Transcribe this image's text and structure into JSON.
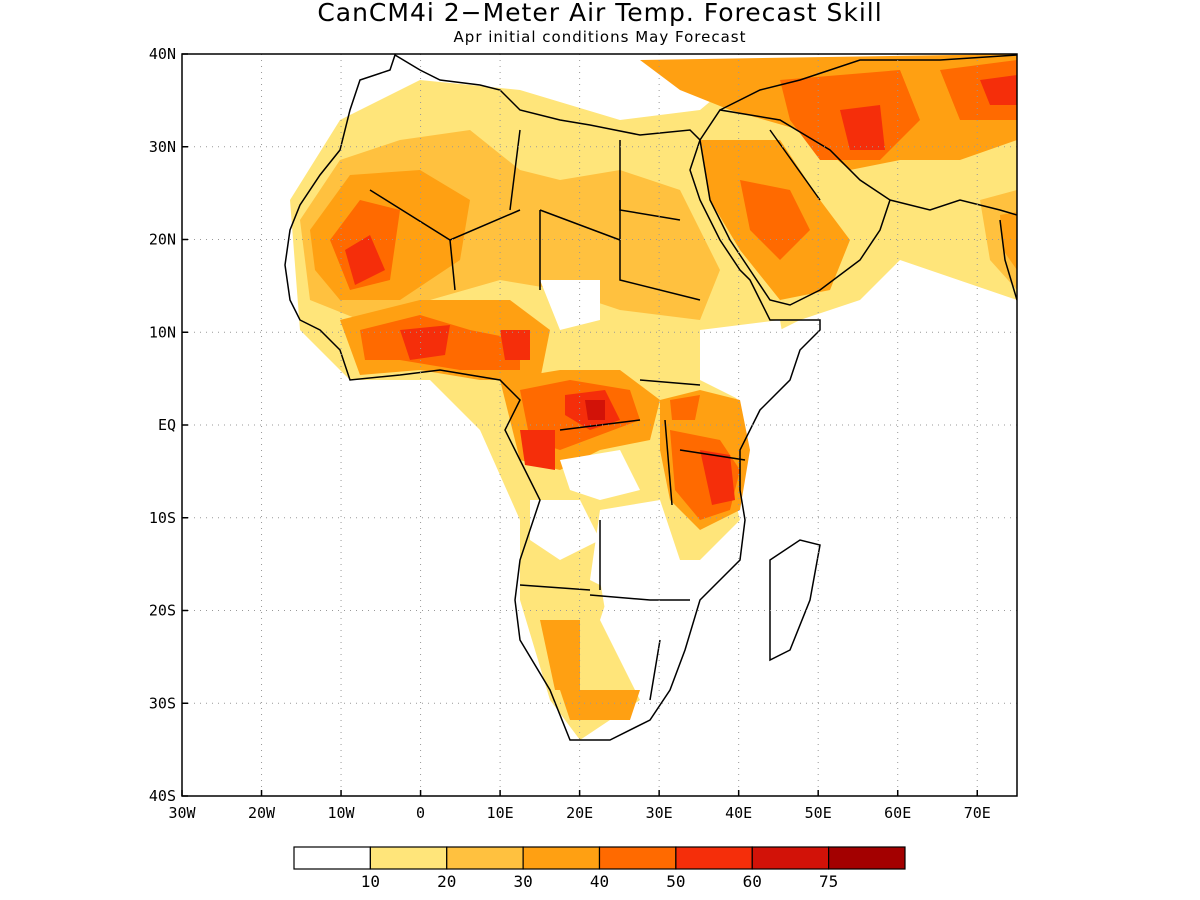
{
  "header": {
    "title": "CanCM4i 2−Meter Air Temp. Forecast Skill",
    "subtitle": "Apr initial conditions   May Forecast"
  },
  "map": {
    "lon_range": [
      -30,
      75
    ],
    "lat_range": [
      -40,
      40
    ],
    "lat_ticks": [
      "40N",
      "30N",
      "20N",
      "10N",
      "EQ",
      "10S",
      "20S",
      "30S",
      "40S"
    ],
    "lon_ticks": [
      "30W",
      "20W",
      "10W",
      "0",
      "10E",
      "20E",
      "30E",
      "40E",
      "50E",
      "60E",
      "70E"
    ],
    "gridlines": "dotted"
  },
  "colorbar": {
    "colors": [
      "#ffffff",
      "#ffe57a",
      "#ffc13f",
      "#ffa012",
      "#ff6a00",
      "#f52e0a",
      "#d21208",
      "#a30000"
    ],
    "labels": [
      "10",
      "20",
      "30",
      "40",
      "50",
      "60",
      "75"
    ]
  }
}
